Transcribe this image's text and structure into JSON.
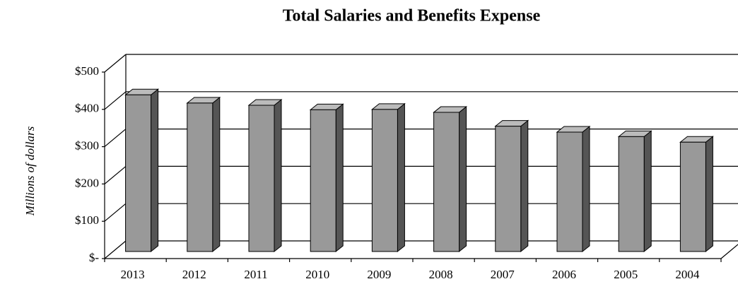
{
  "chart_data": {
    "type": "bar3d",
    "title": "Total Salaries and Benefits Expense",
    "y_label": "Millions of dollars",
    "categories": [
      "2013",
      "2012",
      "2011",
      "2010",
      "2009",
      "2008",
      "2007",
      "2006",
      "2005",
      "2004"
    ],
    "values": [
      420,
      398,
      392,
      380,
      381,
      373,
      336,
      320,
      308,
      293
    ],
    "color": "#999999",
    "ylim": [
      0,
      500
    ],
    "yticks": [
      {
        "value": 0,
        "label": "$-"
      },
      {
        "value": 100,
        "label": "$100"
      },
      {
        "value": 200,
        "label": "$200"
      },
      {
        "value": 300,
        "label": "$300"
      },
      {
        "value": 400,
        "label": "$400"
      },
      {
        "value": 500,
        "label": "$500"
      }
    ],
    "grid": true
  }
}
